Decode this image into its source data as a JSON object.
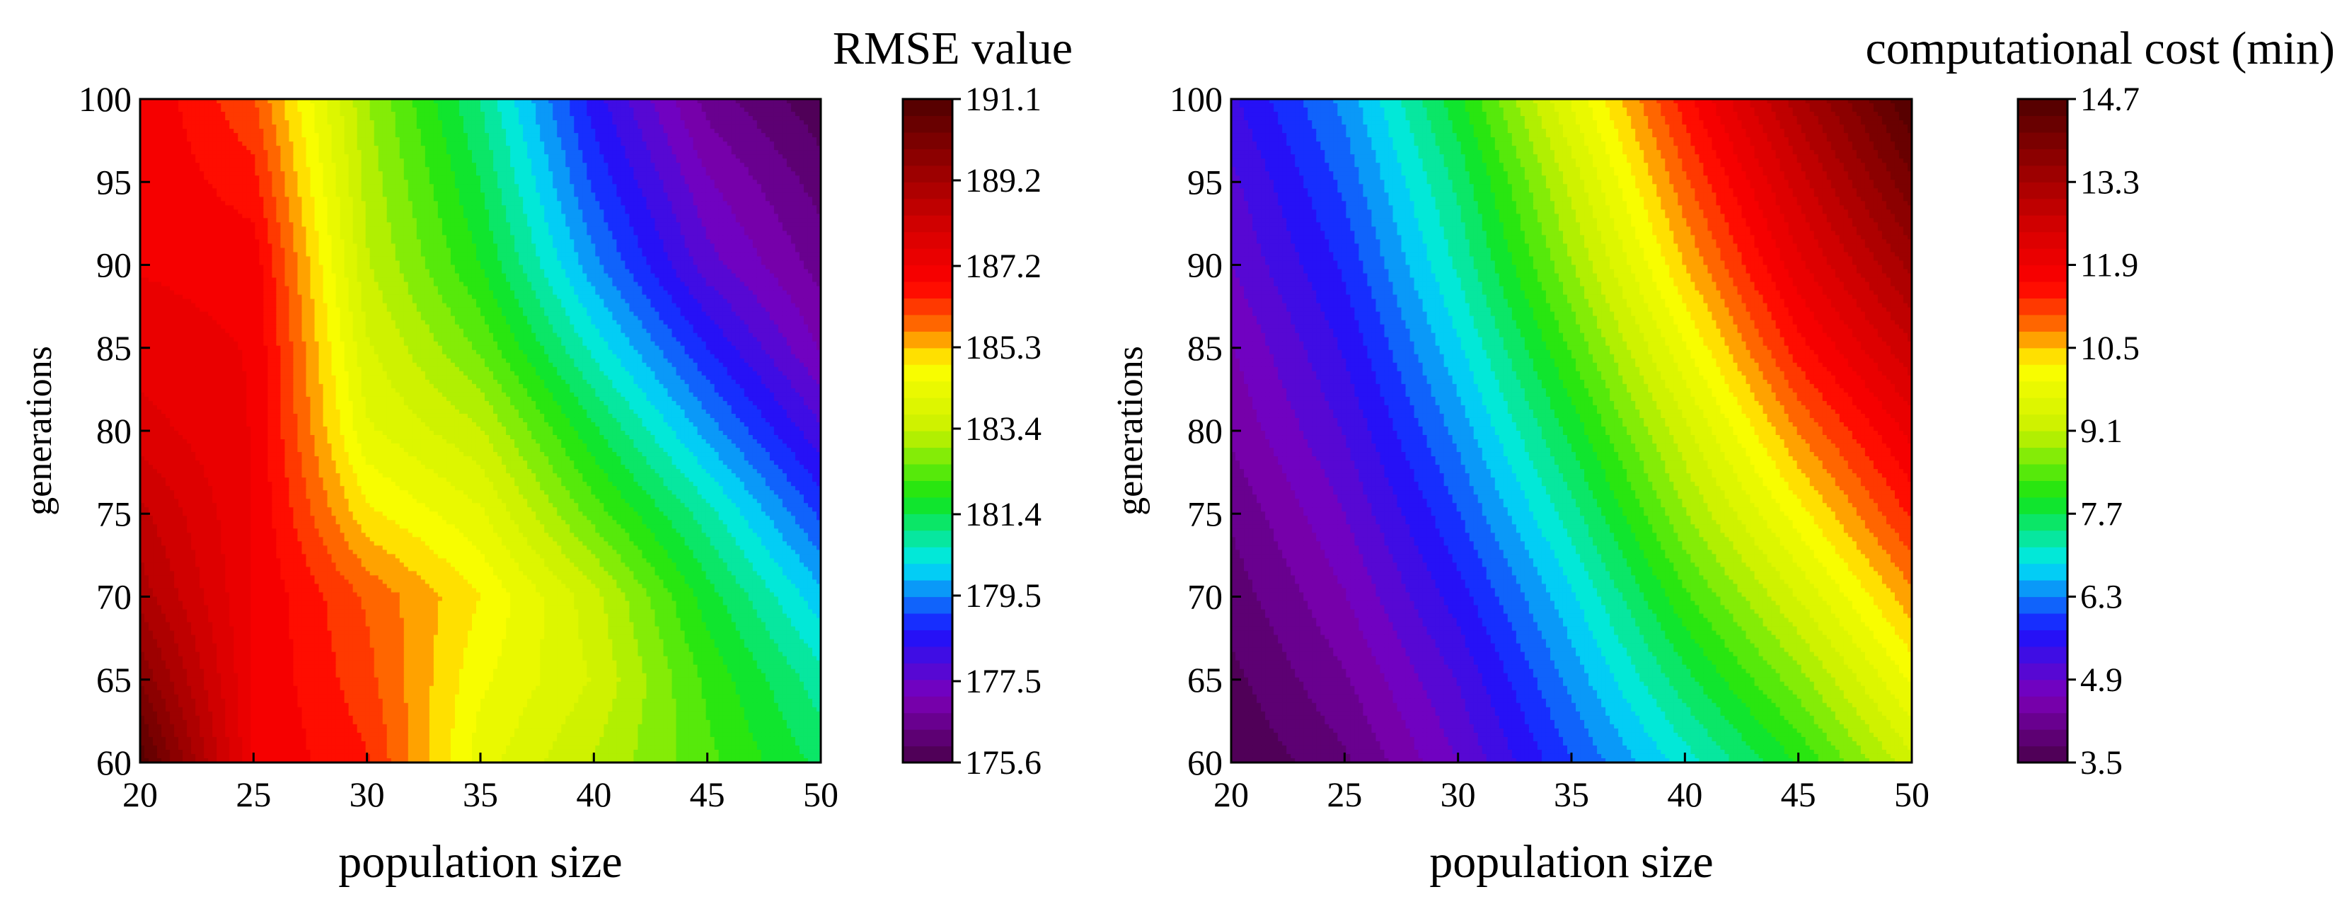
{
  "colors": {
    "stops": [
      "#4a004a",
      "#7c00b8",
      "#1a14ff",
      "#00e8f4",
      "#12e412",
      "#c8f000",
      "#ffff00",
      "#ff6a00",
      "#ff0000",
      "#d80000",
      "#500000"
    ],
    "stop_positions": [
      0,
      0.1,
      0.2,
      0.3,
      0.4,
      0.5,
      0.6,
      0.66,
      0.72,
      0.8,
      1.0
    ]
  },
  "chart_data": [
    {
      "type": "heatmap",
      "subtype": "filled-contour",
      "title": "RMSE value",
      "xlabel": "population size",
      "ylabel": "generations",
      "x": [
        20,
        25,
        30,
        35,
        40,
        45,
        50
      ],
      "y": [
        60,
        65,
        70,
        75,
        80,
        85,
        90,
        95,
        100
      ],
      "xlim": [
        20,
        50
      ],
      "ylim": [
        60,
        100
      ],
      "xticks": [
        "20",
        "25",
        "30",
        "35",
        "40",
        "45",
        "50"
      ],
      "yticks": [
        "60",
        "65",
        "70",
        "75",
        "80",
        "85",
        "90",
        "95",
        "100"
      ],
      "z": [
        [
          191.0,
          187.2,
          186.5,
          184.3,
          183.3,
          182.3,
          181.3
        ],
        [
          189.9,
          187.2,
          186.2,
          184.6,
          183.7,
          182.1,
          180.8
        ],
        [
          189.0,
          187.2,
          186.0,
          184.9,
          183.5,
          181.6,
          180.0
        ],
        [
          188.5,
          187.2,
          185.0,
          184.2,
          182.4,
          180.8,
          179.0
        ],
        [
          187.8,
          187.2,
          184.2,
          183.4,
          181.5,
          179.7,
          178.0
        ],
        [
          187.4,
          187.2,
          183.8,
          182.5,
          180.5,
          178.7,
          177.1
        ],
        [
          187.2,
          187.1,
          183.4,
          181.8,
          179.6,
          177.7,
          176.6
        ],
        [
          187.2,
          186.6,
          183.2,
          181.4,
          179.0,
          177.2,
          176.2
        ],
        [
          187.2,
          186.1,
          183.0,
          181.0,
          178.5,
          176.6,
          175.7
        ]
      ],
      "zlim": [
        175.6,
        191.1
      ],
      "colorbar_ticks": [
        "175.6",
        "177.5",
        "179.5",
        "181.4",
        "183.4",
        "185.3",
        "187.2",
        "189.2",
        "191.1"
      ]
    },
    {
      "type": "heatmap",
      "subtype": "filled-contour",
      "title": "computational cost (min)",
      "xlabel": "population size",
      "ylabel": "generations",
      "x": [
        20,
        25,
        30,
        35,
        40,
        45,
        50
      ],
      "y": [
        60,
        65,
        70,
        75,
        80,
        85,
        90,
        95,
        100
      ],
      "xlim": [
        20,
        50
      ],
      "ylim": [
        60,
        100
      ],
      "xticks": [
        "20",
        "25",
        "30",
        "35",
        "40",
        "45",
        "50"
      ],
      "yticks": [
        "60",
        "65",
        "70",
        "75",
        "80",
        "85",
        "90",
        "95",
        "100"
      ],
      "z": [
        [
          3.5,
          4.0,
          4.9,
          6.0,
          7.0,
          8.0,
          9.3
        ],
        [
          3.7,
          4.3,
          5.2,
          6.4,
          7.6,
          8.7,
          10.0
        ],
        [
          3.9,
          4.6,
          5.6,
          6.8,
          8.2,
          9.4,
          10.7
        ],
        [
          4.1,
          4.9,
          6.0,
          7.3,
          8.8,
          10.1,
          11.4
        ],
        [
          4.4,
          5.2,
          6.4,
          7.8,
          9.3,
          10.8,
          12.0
        ],
        [
          4.6,
          5.5,
          6.8,
          8.3,
          9.9,
          11.5,
          12.7
        ],
        [
          4.9,
          5.8,
          7.2,
          8.8,
          10.5,
          12.1,
          13.4
        ],
        [
          5.1,
          6.1,
          7.5,
          9.2,
          11.0,
          12.6,
          14.1
        ],
        [
          5.4,
          6.4,
          7.9,
          9.7,
          11.5,
          13.2,
          14.7
        ]
      ],
      "zlim": [
        3.5,
        14.7
      ],
      "colorbar_ticks": [
        "3.5",
        "4.9",
        "6.3",
        "7.7",
        "9.1",
        "10.5",
        "11.9",
        "13.3",
        "14.7"
      ]
    }
  ]
}
